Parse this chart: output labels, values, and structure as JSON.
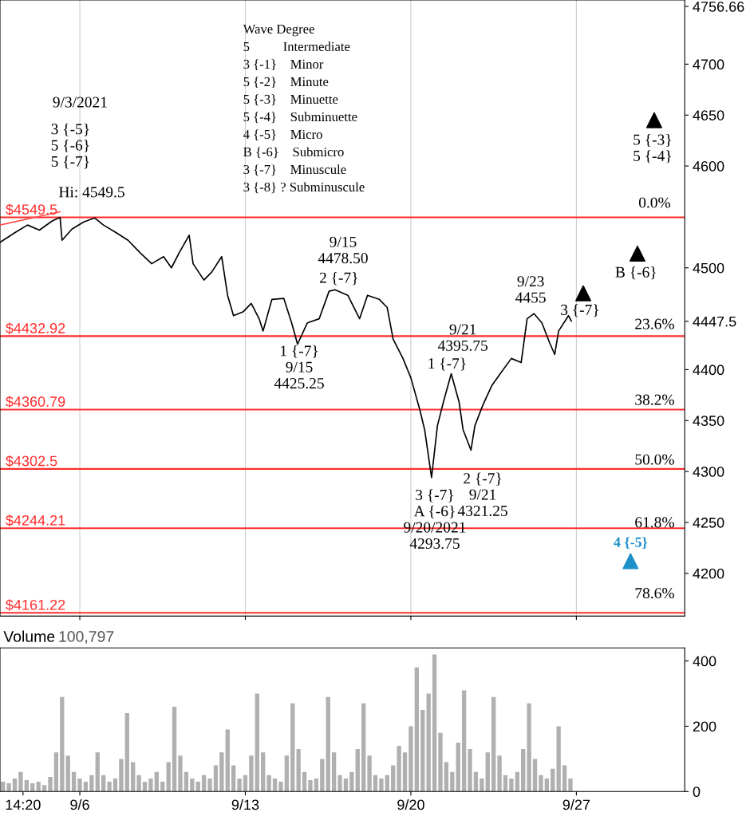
{
  "chart_data": [
    {
      "type": "line",
      "xlim": [
        "2021-09-02T15:00",
        "2021-10-01T14:00"
      ],
      "ylim": [
        4158,
        4763
      ],
      "xticks": [
        {
          "value": "2021-09-06",
          "label": null
        },
        {
          "value": "2021-09-13",
          "label": null
        },
        {
          "value": "2021-09-20",
          "label": null
        },
        {
          "value": "2021-09-27",
          "label": null
        }
      ],
      "yticks": [
        4200,
        4250,
        4300,
        4350,
        4400,
        4447.5,
        4500,
        4600,
        4650,
        4700,
        4756.66
      ],
      "tick_labels": "y",
      "grid": "x",
      "series": [
        {
          "color": "#000000",
          "x": [
            "2021-09-02T15:00",
            "2021-09-03T07:00",
            "2021-09-03T19:00",
            "2021-09-04T07:00",
            "2021-09-04T20:00",
            "2021-09-05T04:00",
            "2021-09-05T06:00",
            "2021-09-05T16:00",
            "2021-09-06T04:00",
            "2021-09-06T15:00",
            "2021-09-07T00:00",
            "2021-09-07T12:00",
            "2021-09-08T01:00",
            "2021-09-08T13:00",
            "2021-09-09T01:00",
            "2021-09-09T13:00",
            "2021-09-09T21:00",
            "2021-09-10T05:00",
            "2021-09-10T15:00",
            "2021-09-10T19:00",
            "2021-09-11T06:00",
            "2021-09-11T14:00",
            "2021-09-12T00:00",
            "2021-09-12T06:00",
            "2021-09-12T12:00",
            "2021-09-12T22:00",
            "2021-09-13T06:00",
            "2021-09-13T14:00",
            "2021-09-13T18:00",
            "2021-09-14T03:00",
            "2021-09-14T15:00",
            "2021-09-14T23:00",
            "2021-09-15T05:00",
            "2021-09-15T15:00",
            "2021-09-16T03:00",
            "2021-09-16T13:00",
            "2021-09-16T19:00",
            "2021-09-17T08:00",
            "2021-09-17T20:00",
            "2021-09-18T04:00",
            "2021-09-18T16:00",
            "2021-09-19T00:00",
            "2021-09-19T06:00",
            "2021-09-19T16:00",
            "2021-09-20T00:00",
            "2021-09-20T09:00",
            "2021-09-20T14:00",
            "2021-09-20T21:00",
            "2021-09-21T03:00",
            "2021-09-21T09:00",
            "2021-09-21T17:00",
            "2021-09-22T01:00",
            "2021-09-22T05:00",
            "2021-09-22T13:00",
            "2021-09-22T17:00",
            "2021-09-23T01:00",
            "2021-09-23T10:00",
            "2021-09-23T18:00",
            "2021-09-24T06:00",
            "2021-09-24T16:00",
            "2021-09-24T22:00",
            "2021-09-25T05:00",
            "2021-09-25T13:00",
            "2021-09-25T21:00",
            "2021-09-26T02:00",
            "2021-09-26T06:00",
            "2021-09-26T16:00",
            "2021-09-26T19:00"
          ],
          "values": [
            4525,
            4535,
            4542,
            4537,
            4546,
            4549.5,
            4527,
            4538,
            4545,
            4549,
            4542,
            4535,
            4527,
            4515,
            4504,
            4511,
            4500,
            4515,
            4532,
            4504,
            4488,
            4496,
            4511,
            4473,
            4453,
            4457,
            4465,
            4450,
            4438,
            4469,
            4470,
            4446,
            4425,
            4446,
            4450,
            4477,
            4478.5,
            4473,
            4450,
            4473,
            4469,
            4461,
            4430,
            4411,
            4392,
            4361,
            4341,
            4294,
            4345,
            4368,
            4396,
            4368,
            4341,
            4321,
            4345,
            4365,
            4384,
            4395,
            4411,
            4407,
            4450,
            4455,
            4446,
            4426,
            4415,
            4438,
            4453,
            4447.5
          ]
        },
        {
          "type": "line",
          "color": "#ff4d4d",
          "x": [
            "2021-09-02T15:00",
            "2021-09-05T04:00"
          ],
          "values": [
            4542,
            4555
          ]
        },
        {
          "type": "scatter",
          "marker": "triangle",
          "color": "#000000",
          "x": [
            "2021-09-27T07:00",
            "2021-09-29T14:00",
            "2021-09-30T07:00"
          ],
          "values": [
            4475,
            4514,
            4645
          ]
        },
        {
          "type": "scatter",
          "marker": "triangle",
          "name": "4 {-5}",
          "color": "#1e8fc8",
          "x": [
            "2021-09-29T07:00"
          ],
          "values": [
            4212
          ]
        }
      ],
      "ref_lines": [
        {
          "axis": "y",
          "value": 4549.5,
          "label": "$4549.5",
          "color": "#ff2d2d"
        },
        {
          "axis": "y",
          "value": 4432.92,
          "label": "$4432.92",
          "color": "#ff2d2d"
        },
        {
          "axis": "y",
          "value": 4360.79,
          "label": "$4360.79",
          "color": "#ff2d2d"
        },
        {
          "axis": "y",
          "value": 4302.5,
          "label": "$4302.5",
          "color": "#ff2d2d"
        },
        {
          "axis": "y",
          "value": 4244.21,
          "label": "$4244.21",
          "color": "#ff2d2d"
        },
        {
          "axis": "y",
          "value": 4161.22,
          "label": "$4161.22",
          "color": "#ff2d2d"
        }
      ],
      "annotations": [
        "Wave Degree",
        "5          Intermediate",
        "3 {-1}    Minor",
        "5 {-2}    Minute",
        "5 {-3}    Minuette",
        "5 {-4}    Subminuette",
        "4 {-5}    Micro",
        "B {-6}    Submicro",
        "3 {-7}    Minuscule",
        "3 {-8} ? Subminuscule",
        "9/3/2021",
        "3 {-5}\n5 {-6}\n5 {-7}",
        "Hi: 4549.5",
        "9/15\n4478.50",
        "2 {-7}",
        "1 {-7}\n9/15\n4425.25",
        "9/21\n4395.75",
        "1 {-7}",
        "3 {-7}\nA {-6}\n9/20/2021\n4293.75",
        "2 {-7}\n9/21\n4321.25",
        "9/23\n4455",
        "3 {-7}",
        "B {-6}",
        "5 {-3}\n5 {-4}",
        "0.0%",
        "23.6%",
        "38.2%",
        "50.0%",
        "61.8%",
        "78.6%"
      ]
    },
    {
      "type": "bar",
      "title": "Volume",
      "subtitle": "100,797",
      "xlim": [
        "2021-09-02T15:00",
        "2021-10-01T14:00"
      ],
      "ylim": [
        0,
        440
      ],
      "xticks": [
        {
          "value": "2021-09-03T14:20",
          "label": "14:20"
        },
        {
          "value": "2021-09-06",
          "label": "9/6"
        },
        {
          "value": "2021-09-13",
          "label": "9/13"
        },
        {
          "value": "2021-09-20",
          "label": "9/20"
        },
        {
          "value": "2021-09-27",
          "label": "9/27"
        }
      ],
      "yticks": [
        0,
        200,
        400
      ],
      "series": [
        {
          "color": "#b0b0b0",
          "x": [
            "2021-09-02T18:00",
            "2021-09-03T00:00",
            "2021-09-03T06:00",
            "2021-09-03T12:00",
            "2021-09-03T18:00",
            "2021-09-04T00:00",
            "2021-09-04T06:00",
            "2021-09-04T12:00",
            "2021-09-04T18:00",
            "2021-09-05T00:00",
            "2021-09-05T06:00",
            "2021-09-05T12:00",
            "2021-09-05T18:00",
            "2021-09-06T00:00",
            "2021-09-06T06:00",
            "2021-09-06T12:00",
            "2021-09-06T18:00",
            "2021-09-07T00:00",
            "2021-09-07T06:00",
            "2021-09-07T12:00",
            "2021-09-07T18:00",
            "2021-09-08T00:00",
            "2021-09-08T06:00",
            "2021-09-08T12:00",
            "2021-09-08T18:00",
            "2021-09-09T00:00",
            "2021-09-09T06:00",
            "2021-09-09T12:00",
            "2021-09-09T18:00",
            "2021-09-10T00:00",
            "2021-09-10T06:00",
            "2021-09-10T12:00",
            "2021-09-10T18:00",
            "2021-09-11T00:00",
            "2021-09-11T06:00",
            "2021-09-11T12:00",
            "2021-09-11T18:00",
            "2021-09-12T00:00",
            "2021-09-12T06:00",
            "2021-09-12T12:00",
            "2021-09-12T18:00",
            "2021-09-13T00:00",
            "2021-09-13T06:00",
            "2021-09-13T12:00",
            "2021-09-13T18:00",
            "2021-09-14T00:00",
            "2021-09-14T06:00",
            "2021-09-14T12:00",
            "2021-09-14T18:00",
            "2021-09-15T00:00",
            "2021-09-15T06:00",
            "2021-09-15T12:00",
            "2021-09-15T18:00",
            "2021-09-16T00:00",
            "2021-09-16T06:00",
            "2021-09-16T12:00",
            "2021-09-16T18:00",
            "2021-09-17T00:00",
            "2021-09-17T06:00",
            "2021-09-17T12:00",
            "2021-09-17T18:00",
            "2021-09-18T00:00",
            "2021-09-18T06:00",
            "2021-09-18T12:00",
            "2021-09-18T18:00",
            "2021-09-19T00:00",
            "2021-09-19T06:00",
            "2021-09-19T12:00",
            "2021-09-19T18:00",
            "2021-09-20T00:00",
            "2021-09-20T06:00",
            "2021-09-20T12:00",
            "2021-09-20T18:00",
            "2021-09-21T00:00",
            "2021-09-21T06:00",
            "2021-09-21T12:00",
            "2021-09-21T18:00",
            "2021-09-22T00:00",
            "2021-09-22T06:00",
            "2021-09-22T12:00",
            "2021-09-22T18:00",
            "2021-09-23T00:00",
            "2021-09-23T06:00",
            "2021-09-23T12:00",
            "2021-09-23T18:00",
            "2021-09-24T00:00",
            "2021-09-24T06:00",
            "2021-09-24T12:00",
            "2021-09-24T18:00",
            "2021-09-25T00:00",
            "2021-09-25T06:00",
            "2021-09-25T12:00",
            "2021-09-25T18:00",
            "2021-09-26T00:00",
            "2021-09-26T06:00",
            "2021-09-26T12:00",
            "2021-09-26T18:00"
          ],
          "values": [
            30,
            25,
            40,
            60,
            35,
            25,
            30,
            20,
            45,
            120,
            290,
            110,
            60,
            40,
            30,
            50,
            120,
            50,
            30,
            40,
            100,
            240,
            90,
            50,
            30,
            40,
            60,
            30,
            90,
            260,
            110,
            60,
            40,
            30,
            50,
            40,
            80,
            120,
            190,
            80,
            40,
            50,
            110,
            300,
            120,
            50,
            40,
            30,
            110,
            270,
            130,
            60,
            35,
            40,
            100,
            290,
            120,
            50,
            40,
            60,
            130,
            270,
            110,
            50,
            40,
            50,
            80,
            140,
            120,
            200,
            380,
            250,
            300,
            420,
            180,
            90,
            60,
            150,
            310,
            130,
            60,
            40,
            120,
            290,
            110,
            50,
            40,
            60,
            130,
            270,
            100,
            50,
            40,
            70,
            200,
            80,
            40
          ]
        }
      ]
    }
  ]
}
